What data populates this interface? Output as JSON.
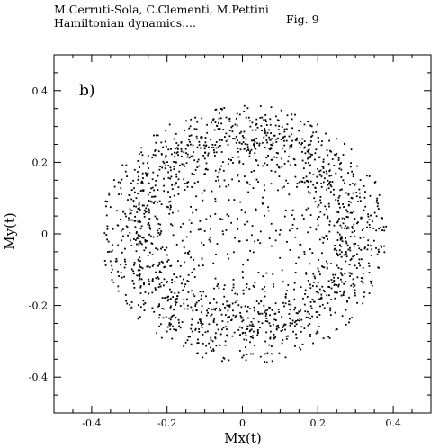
{
  "header": {
    "authors": "M.Cerruti-Sola, C.Clementi, M.Pettini",
    "subtitle": "Hamiltonian dynamics....",
    "figure": "Fig. 9"
  },
  "chart_data": {
    "type": "scatter",
    "panel_label": "b)",
    "xlabel": "Mx(t)",
    "ylabel": "My(t)",
    "xlim": [
      -0.5,
      0.5
    ],
    "ylim": [
      -0.5,
      0.5
    ],
    "xticks": [
      -0.4,
      -0.2,
      0,
      0.2,
      0.4
    ],
    "yticks": [
      -0.4,
      -0.2,
      0,
      0.2,
      0.4
    ],
    "xtick_labels": [
      "-0.4",
      "-0.2",
      "0",
      "0.2",
      "0.4"
    ],
    "ytick_labels": [
      "-0.4",
      "-0.2",
      "0",
      "0.2",
      "0.4"
    ],
    "grid": false,
    "marker_color": "#000000",
    "distribution": {
      "shape": "annulus",
      "center": [
        0.005,
        0.0
      ],
      "peak_radius": 0.28,
      "radius_spread": 0.05,
      "max_radius": 0.37,
      "n_points": 1700,
      "inner_points": 150
    }
  }
}
